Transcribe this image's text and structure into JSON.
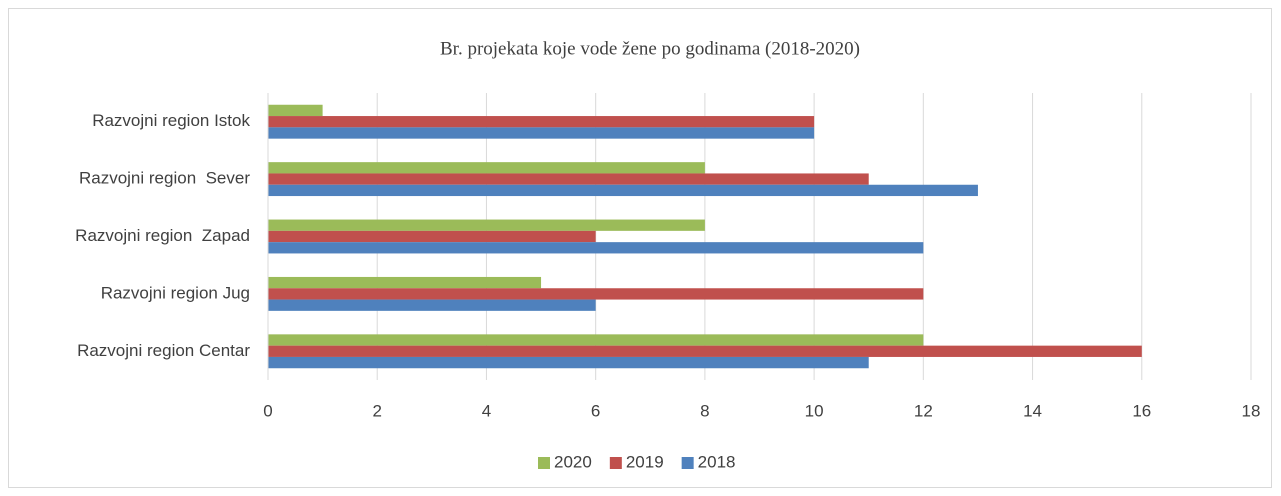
{
  "chart_data": {
    "type": "barh",
    "title": "Br. projekata koje vode žene po godinama (2018-2020)",
    "categories": [
      "Razvojni region Istok",
      "Razvojni region  Sever",
      "Razvojni region  Zapad",
      "Razvojni region Jug",
      "Razvojni region Centar"
    ],
    "series": [
      {
        "name": "2020",
        "color": "#9bbb59",
        "values": [
          1,
          8,
          8,
          5,
          12
        ]
      },
      {
        "name": "2019",
        "color": "#c0504d",
        "values": [
          10,
          11,
          6,
          12,
          16
        ]
      },
      {
        "name": "2018",
        "color": "#4f81bd",
        "values": [
          10,
          13,
          12,
          6,
          11
        ]
      }
    ],
    "xlim": [
      0,
      18
    ],
    "xticks": [
      0,
      2,
      4,
      6,
      8,
      10,
      12,
      14,
      16,
      18
    ],
    "grid": true,
    "legend": "bottom"
  }
}
